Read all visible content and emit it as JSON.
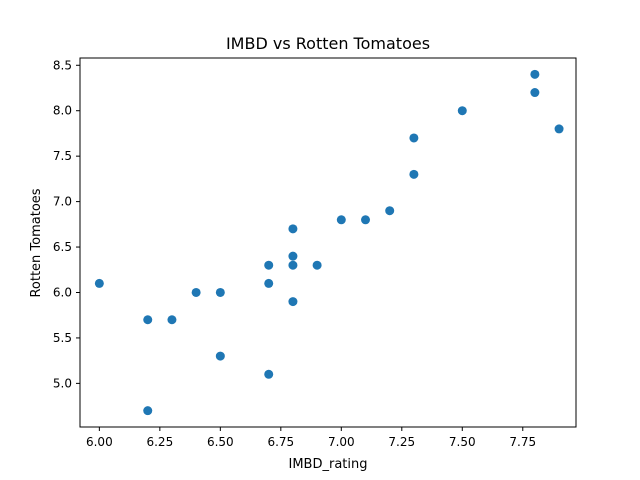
{
  "chart_data": {
    "type": "scatter",
    "title": "IMBD vs Rotten Tomatoes",
    "xlabel": "IMBD_rating",
    "ylabel": "Rotten Tomatoes",
    "xlim": [
      5.92,
      7.97
    ],
    "ylim": [
      4.52,
      8.58
    ],
    "xticks": [
      6.0,
      6.25,
      6.5,
      6.75,
      7.0,
      7.25,
      7.5,
      7.75
    ],
    "xtick_labels": [
      "6.00",
      "6.25",
      "6.50",
      "6.75",
      "7.00",
      "7.25",
      "7.50",
      "7.75"
    ],
    "yticks": [
      5.0,
      5.5,
      6.0,
      6.5,
      7.0,
      7.5,
      8.0,
      8.5
    ],
    "ytick_labels": [
      "5.0",
      "5.5",
      "6.0",
      "6.5",
      "7.0",
      "7.5",
      "8.0",
      "8.5"
    ],
    "grid": false,
    "marker_color": "#1f77b4",
    "points": [
      {
        "x": 6.0,
        "y": 6.1
      },
      {
        "x": 6.2,
        "y": 5.7
      },
      {
        "x": 6.2,
        "y": 4.7
      },
      {
        "x": 6.3,
        "y": 5.7
      },
      {
        "x": 6.4,
        "y": 6.0
      },
      {
        "x": 6.5,
        "y": 6.0
      },
      {
        "x": 6.5,
        "y": 5.3
      },
      {
        "x": 6.7,
        "y": 6.3
      },
      {
        "x": 6.7,
        "y": 6.1
      },
      {
        "x": 6.7,
        "y": 5.1
      },
      {
        "x": 6.8,
        "y": 6.7
      },
      {
        "x": 6.8,
        "y": 6.4
      },
      {
        "x": 6.8,
        "y": 6.3
      },
      {
        "x": 6.8,
        "y": 5.9
      },
      {
        "x": 6.9,
        "y": 6.3
      },
      {
        "x": 7.0,
        "y": 6.8
      },
      {
        "x": 7.1,
        "y": 6.8
      },
      {
        "x": 7.2,
        "y": 6.9
      },
      {
        "x": 7.3,
        "y": 7.7
      },
      {
        "x": 7.3,
        "y": 7.3
      },
      {
        "x": 7.5,
        "y": 8.0
      },
      {
        "x": 7.8,
        "y": 8.4
      },
      {
        "x": 7.8,
        "y": 8.2
      },
      {
        "x": 7.9,
        "y": 7.8
      }
    ]
  }
}
